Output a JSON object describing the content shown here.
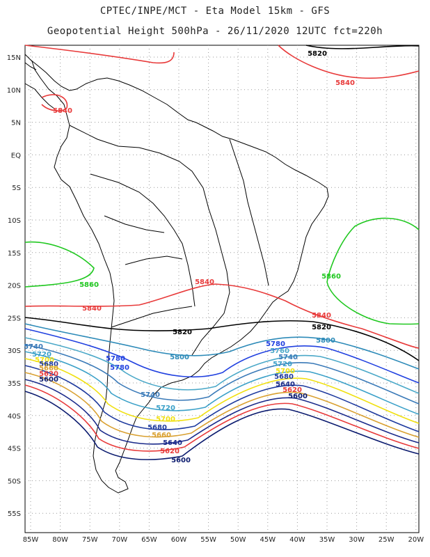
{
  "header": {
    "line1": "CPTEC/INPE/MCT -  Eta Model 15km - GFS",
    "line2": "Geopotential Height 500hPa - 26/11/2020 12UTC fct=220h"
  },
  "axes": {
    "lat_labels": [
      "15N",
      "10N",
      "5N",
      "EQ",
      "5S",
      "10S",
      "15S",
      "20S",
      "25S",
      "30S",
      "35S",
      "40S",
      "45S",
      "50S",
      "55S"
    ],
    "lon_labels": [
      "85W",
      "80W",
      "75W",
      "70W",
      "65W",
      "60W",
      "55W",
      "50W",
      "45W",
      "40W",
      "35W",
      "30W",
      "25W",
      "20W"
    ]
  },
  "colors": {
    "5580": "#0a1a6e",
    "5600": "#0a1a6e",
    "5620": "#e83a3a",
    "5640": "#1a2a8a",
    "5660": "#d9a030",
    "5680": "#1e3a9e",
    "5700": "#f0e010",
    "5720": "#3aa0c8",
    "5740": "#3a7ab8",
    "5760": "#4aa8c8",
    "5780": "#2040e0",
    "5800": "#2c8ab8",
    "5820": "#000000",
    "5840": "#e83a3a",
    "5860": "#20c820"
  },
  "contour_labels": [
    {
      "text": "5820",
      "level": "5820"
    },
    {
      "text": "5840",
      "level": "5840"
    },
    {
      "text": "5840",
      "level": "5840"
    },
    {
      "text": "5860",
      "level": "5860"
    },
    {
      "text": "5860",
      "level": "5860"
    },
    {
      "text": "5840",
      "level": "5840"
    },
    {
      "text": "5840",
      "level": "5840"
    },
    {
      "text": "5840",
      "level": "5840"
    },
    {
      "text": "5820",
      "level": "5820"
    },
    {
      "text": "5820",
      "level": "5820"
    },
    {
      "text": "5800",
      "level": "5800"
    },
    {
      "text": "5800",
      "level": "5800"
    },
    {
      "text": "5780",
      "level": "5780"
    },
    {
      "text": "5780",
      "level": "5780"
    },
    {
      "text": "5780",
      "level": "5780"
    },
    {
      "text": "5760",
      "level": "5760"
    },
    {
      "text": "5740",
      "level": "5740"
    },
    {
      "text": "5740",
      "level": "5740"
    },
    {
      "text": "5740",
      "level": "5740"
    },
    {
      "text": "5720",
      "level": "5720"
    },
    {
      "text": "5720",
      "level": "5720"
    },
    {
      "text": "5720",
      "level": "5720"
    },
    {
      "text": "5700",
      "level": "5700"
    },
    {
      "text": "5700",
      "level": "5700"
    },
    {
      "text": "5700",
      "level": "5700"
    },
    {
      "text": "5680",
      "level": "5680"
    },
    {
      "text": "5680",
      "level": "5680"
    },
    {
      "text": "5680",
      "level": "5680"
    },
    {
      "text": "5660",
      "level": "5660"
    },
    {
      "text": "5660",
      "level": "5660"
    },
    {
      "text": "5640",
      "level": "5640"
    },
    {
      "text": "5640",
      "level": "5640"
    },
    {
      "text": "5620",
      "level": "5620"
    },
    {
      "text": "5620",
      "level": "5620"
    },
    {
      "text": "5600",
      "level": "5600"
    },
    {
      "text": "5600",
      "level": "5600"
    },
    {
      "text": "5620",
      "level": "5620"
    },
    {
      "text": "5600",
      "level": "5600"
    }
  ]
}
